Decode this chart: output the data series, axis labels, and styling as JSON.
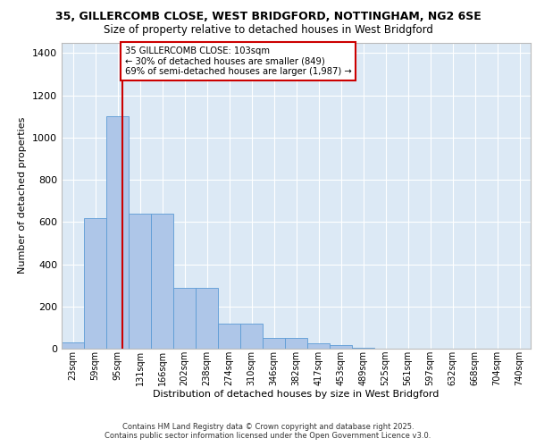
{
  "title1": "35, GILLERCOMB CLOSE, WEST BRIDGFORD, NOTTINGHAM, NG2 6SE",
  "title2": "Size of property relative to detached houses in West Bridgford",
  "xlabel": "Distribution of detached houses by size in West Bridgford",
  "ylabel": "Number of detached properties",
  "bin_labels": [
    "23sqm",
    "59sqm",
    "95sqm",
    "131sqm",
    "166sqm",
    "202sqm",
    "238sqm",
    "274sqm",
    "310sqm",
    "346sqm",
    "382sqm",
    "417sqm",
    "453sqm",
    "489sqm",
    "525sqm",
    "561sqm",
    "597sqm",
    "632sqm",
    "668sqm",
    "704sqm",
    "740sqm"
  ],
  "bar_heights": [
    30,
    620,
    1100,
    640,
    640,
    290,
    290,
    120,
    120,
    50,
    50,
    25,
    15,
    5,
    0,
    0,
    0,
    0,
    0,
    0,
    0
  ],
  "bar_color": "#aec6e8",
  "bar_edge_color": "#5b9bd5",
  "background_color": "#dce9f5",
  "grid_color": "#ffffff",
  "annotation_text": "35 GILLERCOMB CLOSE: 103sqm\n← 30% of detached houses are smaller (849)\n69% of semi-detached houses are larger (1,987) →",
  "annotation_box_color": "#ffffff",
  "annotation_box_edge": "#cc0000",
  "ylim": [
    0,
    1450
  ],
  "yticks": [
    0,
    200,
    400,
    600,
    800,
    1000,
    1200,
    1400
  ],
  "footer1": "Contains HM Land Registry data © Crown copyright and database right 2025.",
  "footer2": "Contains public sector information licensed under the Open Government Licence v3.0."
}
